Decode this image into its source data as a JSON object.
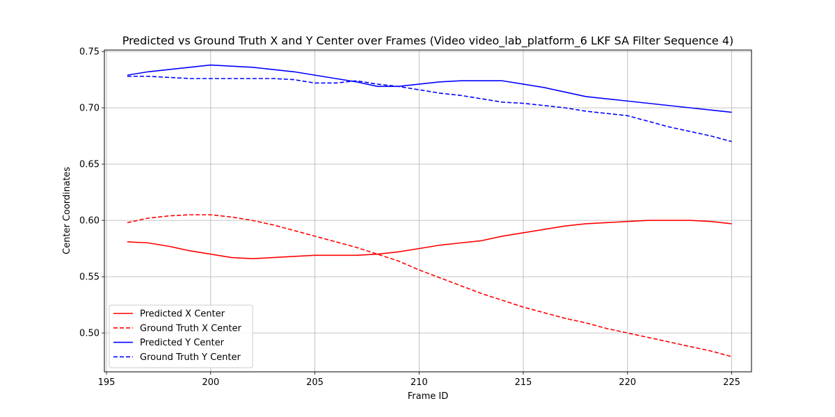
{
  "chart_data": {
    "type": "line",
    "title": "Predicted vs Ground Truth X and Y Center over Frames (Video video_lab_platform_6 LKF SA Filter Sequence 4)",
    "xlabel": "Frame ID",
    "ylabel": "Center Coordinates",
    "xlim": [
      194.9,
      225.95
    ],
    "ylim": [
      0.4655,
      0.7513
    ],
    "xticks": [
      195,
      200,
      205,
      210,
      215,
      220,
      225
    ],
    "xtick_labels": [
      "195",
      "200",
      "205",
      "210",
      "215",
      "220",
      "225"
    ],
    "yticks": [
      0.5,
      0.55,
      0.6,
      0.65,
      0.7,
      0.75
    ],
    "ytick_labels": [
      "0.50",
      "0.55",
      "0.60",
      "0.65",
      "0.70",
      "0.75"
    ],
    "grid": true,
    "legend_position": "lower-left",
    "x": [
      196,
      197,
      198,
      199,
      200,
      201,
      202,
      203,
      204,
      205,
      206,
      207,
      208,
      209,
      210,
      211,
      212,
      213,
      214,
      215,
      216,
      217,
      218,
      219,
      220,
      221,
      222,
      223,
      224,
      225
    ],
    "series": [
      {
        "name": "Predicted X Center",
        "color": "#ff0000",
        "dash": "solid",
        "values": [
          0.581,
          0.58,
          0.577,
          0.573,
          0.57,
          0.567,
          0.566,
          0.567,
          0.568,
          0.569,
          0.569,
          0.569,
          0.57,
          0.572,
          0.575,
          0.578,
          0.58,
          0.582,
          0.586,
          0.589,
          0.592,
          0.595,
          0.597,
          0.598,
          0.599,
          0.6,
          0.6,
          0.6,
          0.599,
          0.597
        ]
      },
      {
        "name": "Ground Truth X Center",
        "color": "#ff0000",
        "dash": "dashed",
        "values": [
          0.598,
          0.602,
          0.604,
          0.605,
          0.605,
          0.603,
          0.6,
          0.596,
          0.591,
          0.586,
          0.581,
          0.576,
          0.57,
          0.564,
          0.556,
          0.549,
          0.542,
          0.535,
          0.529,
          0.523,
          0.518,
          0.513,
          0.509,
          0.504,
          0.5,
          0.496,
          0.492,
          0.488,
          0.484,
          0.479
        ]
      },
      {
        "name": "Predicted Y Center",
        "color": "#0000ff",
        "dash": "solid",
        "values": [
          0.729,
          0.732,
          0.734,
          0.736,
          0.738,
          0.737,
          0.736,
          0.734,
          0.732,
          0.729,
          0.726,
          0.723,
          0.719,
          0.719,
          0.721,
          0.723,
          0.724,
          0.724,
          0.724,
          0.721,
          0.718,
          0.714,
          0.71,
          0.708,
          0.706,
          0.704,
          0.702,
          0.7,
          0.698,
          0.696
        ]
      },
      {
        "name": "Ground Truth Y Center",
        "color": "#0000ff",
        "dash": "dashed",
        "values": [
          0.728,
          0.728,
          0.727,
          0.726,
          0.726,
          0.726,
          0.726,
          0.726,
          0.725,
          0.722,
          0.722,
          0.724,
          0.721,
          0.719,
          0.716,
          0.713,
          0.711,
          0.708,
          0.705,
          0.704,
          0.702,
          0.7,
          0.697,
          0.695,
          0.693,
          0.688,
          0.683,
          0.679,
          0.675,
          0.67
        ]
      }
    ]
  }
}
